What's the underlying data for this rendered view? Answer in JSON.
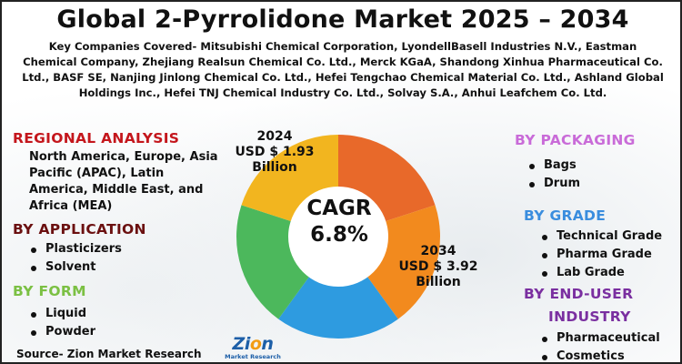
{
  "title": "Global 2-Pyrrolidone Market 2025 – 2034",
  "companies_text": "Key Companies Covered- Mitsubishi Chemical Corporation, LyondellBasell Industries N.V., Eastman Chemical Company, Zhejiang Realsun Chemical Co. Ltd., Merck KGaA, Shandong Xinhua Pharmaceutical Co. Ltd., BASF SE, Nanjing Jinlong Chemical Co. Ltd., Hefei Tengchao Chemical Material Co. Ltd., Ashland Global Holdings Inc., Hefei TNJ Chemical Industry Co. Ltd., Solvay S.A., Anhui Leafchem Co. Ltd.",
  "regional": {
    "heading": "REGIONAL ANALYSIS",
    "text": "North America, Europe, Asia Pacific (APAC), Latin America, Middle East, and Africa (MEA)",
    "color": "#c4161c"
  },
  "application": {
    "heading": "BY APPLICATION",
    "items": [
      "Plasticizers",
      "Solvent"
    ],
    "color": "#6b1010"
  },
  "form": {
    "heading": "BY FORM",
    "items": [
      "Liquid",
      "Powder"
    ],
    "color": "#7bc043"
  },
  "packaging": {
    "heading": "BY PACKAGING",
    "items": [
      "Bags",
      "Drum"
    ],
    "color": "#c96bd8"
  },
  "grade": {
    "heading": "BY GRADE",
    "items": [
      "Technical Grade",
      "Pharma Grade",
      "Lab Grade"
    ],
    "color": "#3a8dde"
  },
  "end_user": {
    "heading_line1": "BY END-USER",
    "heading_line2": "INDUSTRY",
    "items": [
      "Pharmaceutical",
      "Cosmetics"
    ],
    "color": "#7a2fa0"
  },
  "market_2024": {
    "year": "2024",
    "value": "USD $ 1.93",
    "unit": "Billion"
  },
  "market_2034": {
    "year": "2034",
    "value": "USD $ 3.92",
    "unit": "Billion"
  },
  "cagr": {
    "label": "CAGR",
    "value": "6.8%"
  },
  "donut": {
    "segments": [
      {
        "color": "#e8692a",
        "share": 0.2
      },
      {
        "color": "#f28a1e",
        "share": 0.2
      },
      {
        "color": "#2e9be0",
        "share": 0.2
      },
      {
        "color": "#4cb85c",
        "share": 0.2
      },
      {
        "color": "#f2b51f",
        "share": 0.2
      }
    ]
  },
  "source": "Source- Zion Market Research",
  "logo": {
    "word_a": "Zi",
    "word_o": "o",
    "word_b": "n",
    "sub": "Market Research"
  }
}
